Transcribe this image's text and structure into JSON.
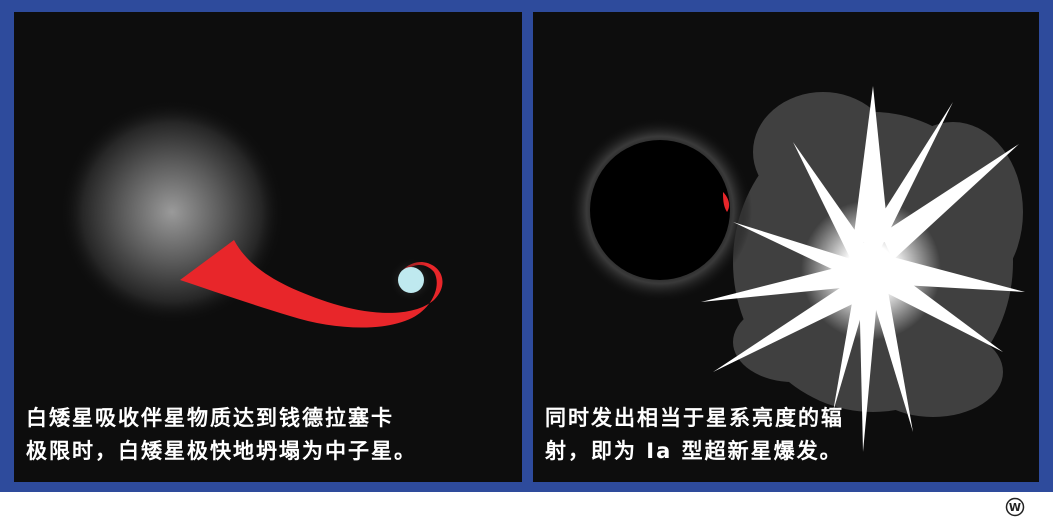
{
  "panels": {
    "left": {
      "caption_line1": "白矮星吸收伴星物质达到钱德拉塞卡",
      "caption_line2": "极限时，白矮星极快地坍塌为中子星。"
    },
    "right": {
      "caption_line1": "同时发出相当于星系亮度的辐",
      "caption_line2": "射，即为 Ia 型超新星爆发。"
    }
  },
  "watermark": "W",
  "colors": {
    "frame": "#2e4b9c",
    "panel_bg": "#0d0d0d",
    "stream": "#e8262a",
    "white_dwarf": "#bfe9ef",
    "flare": "#ffffff"
  }
}
